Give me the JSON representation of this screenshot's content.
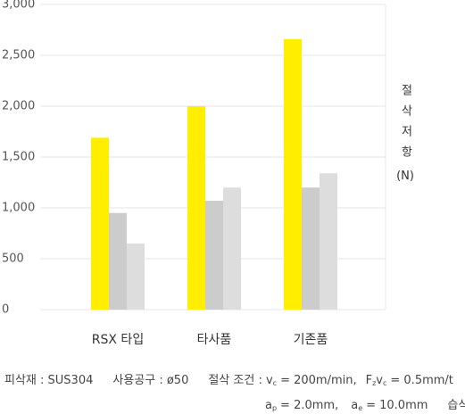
{
  "chart_data": {
    "type": "bar",
    "categories": [
      "RSX 타입",
      "타사품",
      "기존품"
    ],
    "series": [
      {
        "color": "#ffee00",
        "values": [
          1690,
          2000,
          2660
        ]
      },
      {
        "color": "#cccccc",
        "values": [
          950,
          1070,
          1200
        ]
      },
      {
        "color": "#dddddd",
        "values": [
          650,
          1200,
          1340
        ]
      }
    ],
    "ylim": [
      0,
      3000
    ],
    "yticks": [
      0,
      500,
      {
        "value": 1000,
        "label": "1,000"
      },
      {
        "value": 1500,
        "label": "1,500"
      },
      {
        "value": 2000,
        "label": "2,000"
      },
      {
        "value": 2500,
        "label": "2,500"
      },
      {
        "value": 3000,
        "label": "3,000"
      }
    ],
    "grid": true,
    "y_label": "절삭저항",
    "y_unit": "(N)"
  },
  "footnote": {
    "line1": [
      "피삭재 : SUS304",
      "사용공구 : ø50",
      "절삭 조건 : v",
      "c",
      "= 200m/min,",
      "F",
      "z",
      "v",
      "c",
      "= 0.5mm/t"
    ],
    "line2": [
      "a",
      "p",
      "= 2.0mm,",
      "a",
      "e",
      "= 10.0mm",
      "습식"
    ]
  }
}
